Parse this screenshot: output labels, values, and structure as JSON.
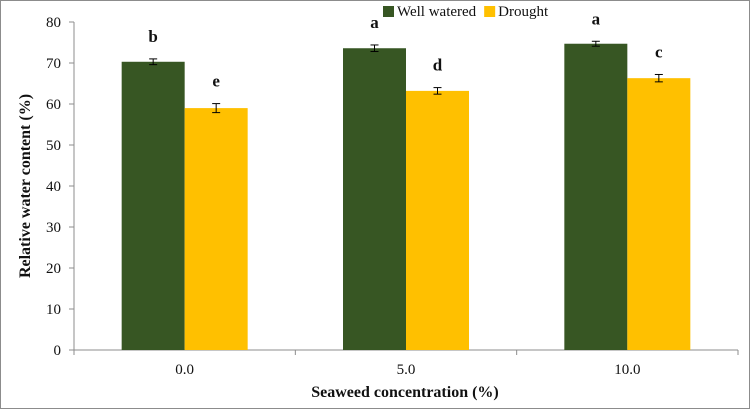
{
  "chart_data": {
    "type": "bar",
    "title": "",
    "xlabel": "Seaweed concentration (%)",
    "ylabel": "Relative water content (%)",
    "ylim": [
      0,
      80
    ],
    "yticks": [
      0,
      10,
      20,
      30,
      40,
      50,
      60,
      70,
      80
    ],
    "categories": [
      "0.0",
      "5.0",
      "10.0"
    ],
    "legend_position": "top-center",
    "grid": false,
    "series": [
      {
        "name": "Well watered",
        "color": "#375623",
        "values": [
          70.3,
          73.6,
          74.7
        ],
        "errors": [
          0.7,
          0.8,
          0.6
        ],
        "labels": [
          "b",
          "a",
          "a"
        ]
      },
      {
        "name": "Drought",
        "color": "#FFC000",
        "values": [
          59.0,
          63.2,
          66.3
        ],
        "errors": [
          1.1,
          0.8,
          0.9
        ],
        "labels": [
          "e",
          "d",
          "c"
        ]
      }
    ]
  }
}
